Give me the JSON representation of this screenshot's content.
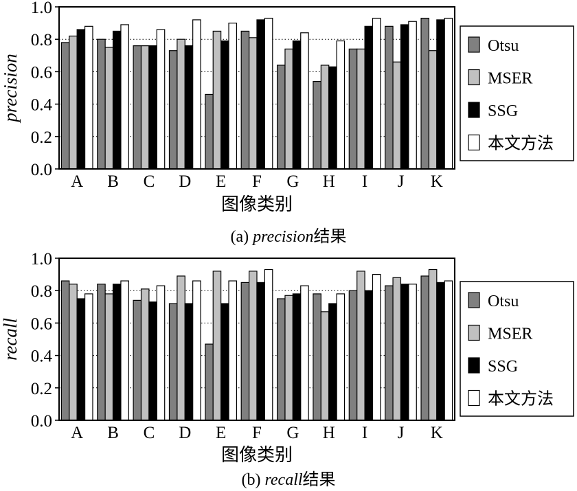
{
  "colors": {
    "Otsu": "#808080",
    "MSER": "#c0c0c0",
    "SSG": "#000000",
    "ours": "#ffffff"
  },
  "chart_data": [
    {
      "type": "bar",
      "ylabel": "precision",
      "xlabel": "图像类别",
      "caption_prefix": "(a) ",
      "caption_metric": "precision",
      "caption_suffix": "结果",
      "ylim": [
        0,
        1.0
      ],
      "yticks": [
        "0.0",
        "0.2",
        "0.4",
        "0.6",
        "0.8",
        "1.0"
      ],
      "grid": true,
      "legend_position": "right",
      "categories": [
        "A",
        "B",
        "C",
        "D",
        "E",
        "F",
        "G",
        "H",
        "I",
        "J",
        "K"
      ],
      "series": [
        {
          "name": "Otsu",
          "values": [
            0.78,
            0.8,
            0.76,
            0.73,
            0.46,
            0.85,
            0.64,
            0.54,
            0.74,
            0.88,
            0.93
          ]
        },
        {
          "name": "MSER",
          "values": [
            0.82,
            0.75,
            0.76,
            0.8,
            0.85,
            0.81,
            0.74,
            0.64,
            0.74,
            0.66,
            0.73
          ]
        },
        {
          "name": "SSG",
          "values": [
            0.86,
            0.85,
            0.76,
            0.76,
            0.79,
            0.92,
            0.79,
            0.63,
            0.88,
            0.89,
            0.92
          ]
        },
        {
          "name": "本文方法",
          "values": [
            0.88,
            0.89,
            0.86,
            0.92,
            0.9,
            0.93,
            0.84,
            0.79,
            0.93,
            0.91,
            0.93
          ]
        }
      ]
    },
    {
      "type": "bar",
      "ylabel": "recall",
      "xlabel": "图像类别",
      "caption_prefix": "(b) ",
      "caption_metric": "recall",
      "caption_suffix": "结果",
      "ylim": [
        0,
        1.0
      ],
      "yticks": [
        "0.0",
        "0.2",
        "0.4",
        "0.6",
        "0.8",
        "1.0"
      ],
      "grid": true,
      "legend_position": "right",
      "categories": [
        "A",
        "B",
        "C",
        "D",
        "E",
        "F",
        "G",
        "H",
        "I",
        "J",
        "K"
      ],
      "series": [
        {
          "name": "Otsu",
          "values": [
            0.86,
            0.84,
            0.74,
            0.72,
            0.47,
            0.85,
            0.75,
            0.78,
            0.8,
            0.83,
            0.89
          ]
        },
        {
          "name": "MSER",
          "values": [
            0.84,
            0.78,
            0.81,
            0.89,
            0.92,
            0.92,
            0.77,
            0.67,
            0.92,
            0.88,
            0.93
          ]
        },
        {
          "name": "SSG",
          "values": [
            0.75,
            0.84,
            0.73,
            0.72,
            0.72,
            0.85,
            0.78,
            0.72,
            0.8,
            0.84,
            0.85
          ]
        },
        {
          "name": "本文方法",
          "values": [
            0.78,
            0.86,
            0.83,
            0.86,
            0.86,
            0.93,
            0.83,
            0.78,
            0.9,
            0.84,
            0.86
          ]
        }
      ]
    }
  ]
}
